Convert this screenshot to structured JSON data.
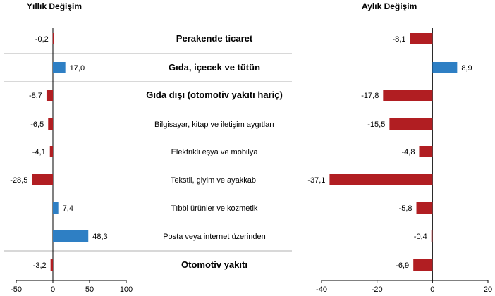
{
  "titles": {
    "left": "Yıllık Değişim",
    "right": "Aylık Değişim"
  },
  "colors": {
    "positive": "#2E7FC4",
    "negative": "#B11E22",
    "axis": "#000000",
    "separator": "#b0b0b0"
  },
  "chart_data": [
    {
      "type": "bar",
      "orientation": "horizontal",
      "title": "Yıllık Değişim",
      "categories": [
        "Perakende ticaret",
        "Gıda, içecek ve tütün",
        "Gıda dışı (otomotiv yakıtı hariç)",
        "Bilgisayar, kitap ve iletişim aygıtları",
        "Elektrikli eşya ve mobilya",
        "Tekstil, giyim ve ayakkabı",
        "Tıbbi ürünler ve kozmetik",
        "Posta veya internet üzerinden",
        "Otomotiv yakıtı"
      ],
      "values": [
        -0.2,
        17.0,
        -8.7,
        -6.5,
        -4.1,
        -28.5,
        7.4,
        48.3,
        -3.2
      ],
      "labels": [
        "-0,2",
        "17,0",
        "-8,7",
        "-6,5",
        "-4,1",
        "-28,5",
        "7,4",
        "48,3",
        "-3,2"
      ],
      "xlim": [
        -50,
        100
      ],
      "ticks": [
        -50,
        0,
        50,
        100
      ],
      "tick_labels": [
        "-50",
        "0",
        "50",
        "100"
      ]
    },
    {
      "type": "bar",
      "orientation": "horizontal",
      "title": "Aylık Değişim",
      "categories": [
        "Perakende ticaret",
        "Gıda, içecek ve tütün",
        "Gıda dışı (otomotiv yakıtı hariç)",
        "Bilgisayar, kitap ve iletişim aygıtları",
        "Elektrikli eşya ve mobilya",
        "Tekstil, giyim ve ayakkabı",
        "Tıbbi ürünler ve kozmetik",
        "Posta veya internet üzerinden",
        "Otomotiv yakıtı"
      ],
      "values": [
        -8.1,
        8.9,
        -17.8,
        -15.5,
        -4.8,
        -37.1,
        -5.8,
        -0.4,
        -6.9
      ],
      "labels": [
        "-8,1",
        "8,9",
        "-17,8",
        "-15,5",
        "-4,8",
        "-37,1",
        "-5,8",
        "-0,4",
        "-6,9"
      ],
      "xlim": [
        -40,
        20
      ],
      "ticks": [
        -40,
        -20,
        0,
        20
      ],
      "tick_labels": [
        "-40",
        "-20",
        "0",
        "20"
      ]
    }
  ],
  "categories": [
    {
      "label": "Perakende ticaret",
      "bold": true
    },
    {
      "label": "Gıda, içecek ve tütün",
      "bold": true
    },
    {
      "label": "Gıda dışı (otomotiv yakıtı hariç)",
      "bold": true
    },
    {
      "label": "Bilgisayar, kitap ve iletişim aygıtları",
      "bold": false
    },
    {
      "label": "Elektrikli eşya ve mobilya",
      "bold": false
    },
    {
      "label": "Tekstil, giyim ve ayakkabı",
      "bold": false
    },
    {
      "label": "Tıbbi ürünler ve kozmetik",
      "bold": false
    },
    {
      "label": "Posta veya internet üzerinden",
      "bold": false
    },
    {
      "label": "Otomotiv yakıtı",
      "bold": true
    }
  ]
}
